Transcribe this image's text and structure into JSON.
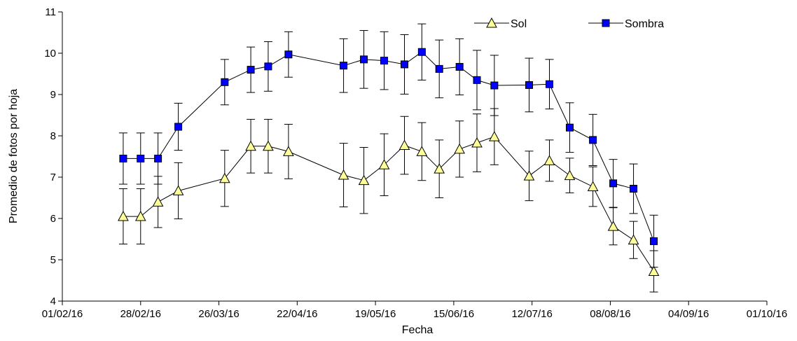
{
  "chart_data": {
    "type": "line",
    "xlabel": "Fecha",
    "ylabel": "Promedio de fotos por hoja",
    "x_axis": {
      "type": "date",
      "range": [
        "01/02/16",
        "01/10/16"
      ],
      "tick_labels": [
        "01/02/16",
        "28/02/16",
        "26/03/16",
        "22/04/16",
        "19/05/16",
        "15/06/16",
        "12/07/16",
        "08/08/16",
        "04/09/16",
        "01/10/16"
      ]
    },
    "y_axis": {
      "range": [
        4,
        11
      ],
      "tick_labels": [
        "4",
        "5",
        "6",
        "7",
        "8",
        "9",
        "10",
        "11"
      ]
    },
    "grid": false,
    "legend_position": "top-right",
    "series": [
      {
        "name": "Sol",
        "marker": "triangle",
        "color": "#ffff99",
        "points": [
          {
            "x": "22/02/16",
            "y": 6.05,
            "err": 0.67
          },
          {
            "x": "28/02/16",
            "y": 6.05,
            "err": 0.67
          },
          {
            "x": "05/03/16",
            "y": 6.4,
            "err": 0.62
          },
          {
            "x": "12/03/16",
            "y": 6.67,
            "err": 0.68
          },
          {
            "x": "28/03/16",
            "y": 6.97,
            "err": 0.68
          },
          {
            "x": "06/04/16",
            "y": 7.75,
            "err": 0.65
          },
          {
            "x": "12/04/16",
            "y": 7.75,
            "err": 0.65
          },
          {
            "x": "19/04/16",
            "y": 7.62,
            "err": 0.66
          },
          {
            "x": "08/05/16",
            "y": 7.05,
            "err": 0.77
          },
          {
            "x": "15/05/16",
            "y": 6.92,
            "err": 0.8
          },
          {
            "x": "22/05/16",
            "y": 7.3,
            "err": 0.75
          },
          {
            "x": "29/05/16",
            "y": 7.77,
            "err": 0.7
          },
          {
            "x": "04/06/16",
            "y": 7.62,
            "err": 0.7
          },
          {
            "x": "10/06/16",
            "y": 7.2,
            "err": 0.7
          },
          {
            "x": "17/06/16",
            "y": 7.68,
            "err": 0.68
          },
          {
            "x": "23/06/16",
            "y": 7.83,
            "err": 0.7
          },
          {
            "x": "29/06/16",
            "y": 7.98,
            "err": 0.68
          },
          {
            "x": "11/07/16",
            "y": 7.03,
            "err": 0.6
          },
          {
            "x": "18/07/16",
            "y": 7.4,
            "err": 0.5
          },
          {
            "x": "25/07/16",
            "y": 7.04,
            "err": 0.42
          },
          {
            "x": "02/08/16",
            "y": 6.77,
            "err": 0.48
          },
          {
            "x": "09/08/16",
            "y": 5.81,
            "err": 0.45
          },
          {
            "x": "16/08/16",
            "y": 5.48,
            "err": 0.45
          },
          {
            "x": "23/08/16",
            "y": 4.72,
            "err": 0.5
          }
        ]
      },
      {
        "name": "Sombra",
        "marker": "square",
        "color": "#0000ff",
        "points": [
          {
            "x": "22/02/16",
            "y": 7.45,
            "err": 0.62
          },
          {
            "x": "28/02/16",
            "y": 7.45,
            "err": 0.62
          },
          {
            "x": "05/03/16",
            "y": 7.45,
            "err": 0.62
          },
          {
            "x": "12/03/16",
            "y": 8.22,
            "err": 0.57
          },
          {
            "x": "28/03/16",
            "y": 9.3,
            "err": 0.55
          },
          {
            "x": "06/04/16",
            "y": 9.6,
            "err": 0.55
          },
          {
            "x": "12/04/16",
            "y": 9.68,
            "err": 0.6
          },
          {
            "x": "19/04/16",
            "y": 9.97,
            "err": 0.55
          },
          {
            "x": "08/05/16",
            "y": 9.7,
            "err": 0.65
          },
          {
            "x": "15/05/16",
            "y": 9.85,
            "err": 0.7
          },
          {
            "x": "22/05/16",
            "y": 9.82,
            "err": 0.7
          },
          {
            "x": "29/05/16",
            "y": 9.73,
            "err": 0.72
          },
          {
            "x": "04/06/16",
            "y": 10.03,
            "err": 0.68
          },
          {
            "x": "10/06/16",
            "y": 9.62,
            "err": 0.7
          },
          {
            "x": "17/06/16",
            "y": 9.67,
            "err": 0.68
          },
          {
            "x": "23/06/16",
            "y": 9.35,
            "err": 0.72
          },
          {
            "x": "29/06/16",
            "y": 9.22,
            "err": 0.73
          },
          {
            "x": "11/07/16",
            "y": 9.23,
            "err": 0.65
          },
          {
            "x": "18/07/16",
            "y": 9.25,
            "err": 0.6
          },
          {
            "x": "25/07/16",
            "y": 8.2,
            "err": 0.6
          },
          {
            "x": "02/08/16",
            "y": 7.9,
            "err": 0.62
          },
          {
            "x": "09/08/16",
            "y": 6.85,
            "err": 0.58
          },
          {
            "x": "16/08/16",
            "y": 6.72,
            "err": 0.6
          },
          {
            "x": "23/08/16",
            "y": 5.45,
            "err": 0.63
          }
        ]
      }
    ]
  }
}
